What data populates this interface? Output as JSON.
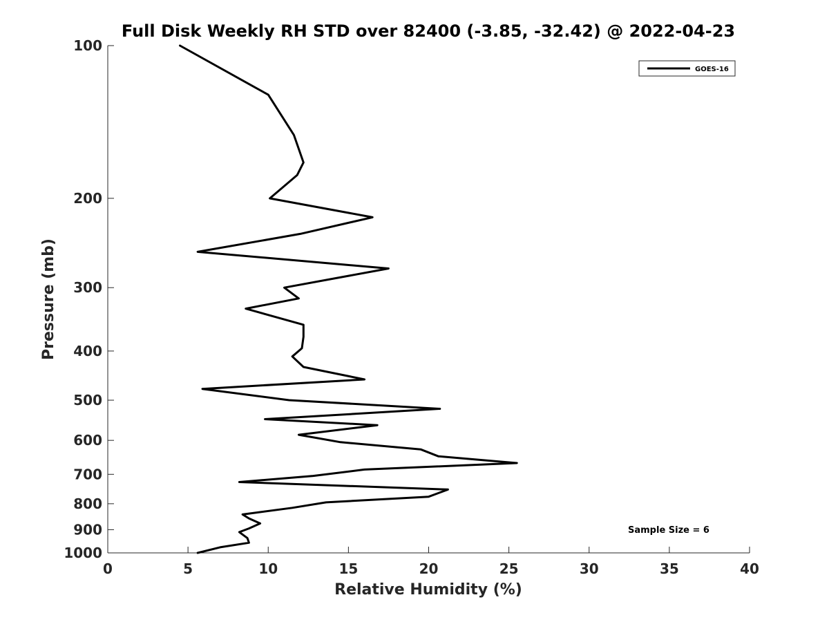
{
  "chart_data": {
    "type": "line",
    "title": "Full Disk Weekly RH STD over 82400 (-3.85, -32.42) @ 2022-04-23",
    "xlabel": "Relative Humidity (%)",
    "ylabel": "Pressure (mb)",
    "xlim": [
      0,
      40
    ],
    "ylim": [
      1000,
      100
    ],
    "yscale": "log",
    "x_ticks": [
      0,
      5,
      10,
      15,
      20,
      25,
      30,
      35,
      40
    ],
    "x_tick_labels": [
      "0",
      "5",
      "10",
      "15",
      "20",
      "25",
      "30",
      "35",
      "40"
    ],
    "y_ticks": [
      100,
      200,
      300,
      400,
      500,
      600,
      700,
      800,
      900,
      1000
    ],
    "y_tick_labels": [
      "100",
      "200",
      "300",
      "400",
      "500",
      "600",
      "700",
      "800",
      "900",
      "1000"
    ],
    "grid": false,
    "legend_position": "top-right",
    "annotation": "Sample Size = 6",
    "series": [
      {
        "name": "GOES-16",
        "color": "#000000",
        "x": [
          4.5,
          10.0,
          11.6,
          12.2,
          11.8,
          10.1,
          16.5,
          12.0,
          5.6,
          17.5,
          11.0,
          11.9,
          8.6,
          12.2,
          12.2,
          12.1,
          11.5,
          12.2,
          16.0,
          5.9,
          11.3,
          20.7,
          9.8,
          16.8,
          11.9,
          14.5,
          19.5,
          20.6,
          25.5,
          16.0,
          12.8,
          8.2,
          21.2,
          20.0,
          13.6,
          11.5,
          8.4,
          8.8,
          9.5,
          8.8,
          8.2,
          8.7,
          8.8,
          7.0,
          5.6
        ],
        "y": [
          100,
          125,
          150,
          170,
          180,
          200,
          218,
          235,
          255,
          275,
          300,
          315,
          330,
          355,
          375,
          395,
          410,
          430,
          455,
          475,
          500,
          520,
          545,
          560,
          585,
          605,
          625,
          645,
          665,
          685,
          705,
          725,
          750,
          775,
          795,
          815,
          840,
          855,
          875,
          895,
          910,
          935,
          955,
          975,
          1000
        ]
      }
    ]
  }
}
